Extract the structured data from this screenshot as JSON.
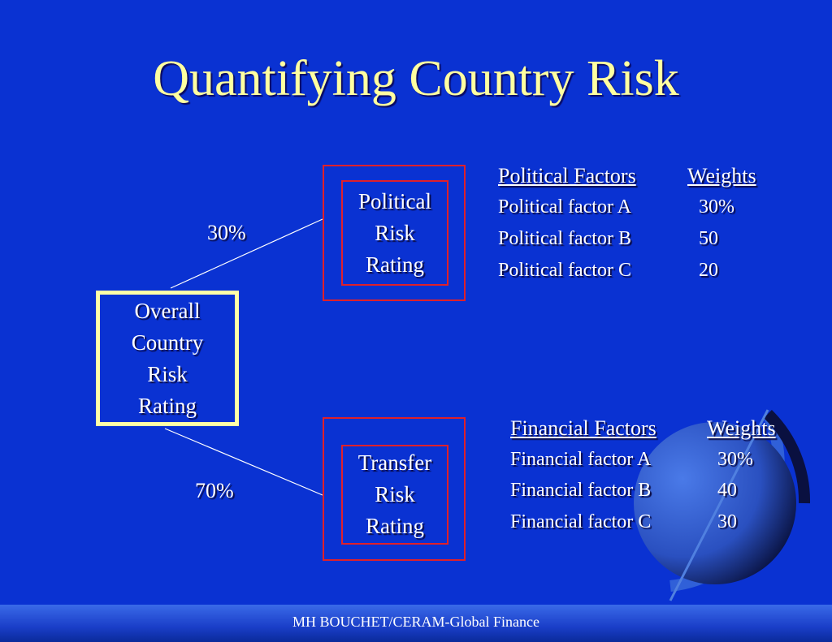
{
  "title": "Quantifying Country Risk",
  "overall_box": "Overall\nCountry\nRisk\nRating",
  "political_box": "Political\nRisk\nRating",
  "transfer_box": "Transfer\nRisk\nRating",
  "political_weight": "30%",
  "transfer_weight": "70%",
  "political_table": {
    "headers": [
      "Political Factors",
      "Weights"
    ],
    "rows": [
      [
        "Political factor A",
        "30%"
      ],
      [
        "Political factor B",
        "50"
      ],
      [
        "Political factor C",
        "20"
      ]
    ]
  },
  "financial_table": {
    "headers": [
      "Financial Factors",
      "Weights"
    ],
    "rows": [
      [
        "Financial factor A",
        "30%"
      ],
      [
        "Financial factor B",
        "40"
      ],
      [
        "Financial factor C",
        "30"
      ]
    ]
  },
  "footer": "MH BOUCHET/CERAM-Global Finance",
  "colors": {
    "background": "#0a32d2",
    "title": "#ffffa0",
    "overall_border": "#ffffa8",
    "box_border": "#e0202a"
  },
  "decoration": "globe-icon"
}
